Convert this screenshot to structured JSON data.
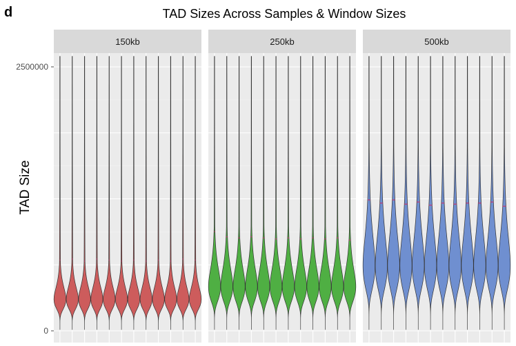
{
  "panel_letter": "d",
  "chart_data": {
    "type": "violin",
    "title": "TAD Sizes Across Samples & Window Sizes",
    "xlabel": "",
    "ylabel": "TAD Size",
    "ylim": [
      0,
      2600000
    ],
    "yticks": [
      0,
      2500000
    ],
    "ytick_labels": [
      "0",
      "2500000"
    ],
    "grid": true,
    "samples_per_facet": 12,
    "facets": [
      {
        "label": "150kb",
        "color": "#CD5C5C",
        "median_color": "#c8326e",
        "bulge_center": 300000,
        "bulge_width": 0.34,
        "medians": [
          670000,
          680000,
          660000,
          680000,
          670000,
          660000,
          670000,
          660000,
          670000,
          660000,
          680000,
          670000
        ]
      },
      {
        "label": "250kb",
        "color": "#4FAF43",
        "median_color": "#c8326e",
        "bulge_center": 420000,
        "bulge_width": 0.36,
        "medians": [
          940000,
          890000,
          880000,
          890000,
          880000,
          870000,
          880000,
          870000,
          880000,
          870000,
          880000,
          860000
        ]
      },
      {
        "label": "500kb",
        "color": "#6F8FD0",
        "median_color": "#c8326e",
        "bulge_center": 620000,
        "bulge_width": 0.4,
        "medians": [
          1240000,
          1210000,
          1240000,
          1200000,
          1220000,
          1190000,
          1210000,
          1200000,
          1210000,
          1210000,
          1220000,
          1180000
        ]
      }
    ]
  }
}
